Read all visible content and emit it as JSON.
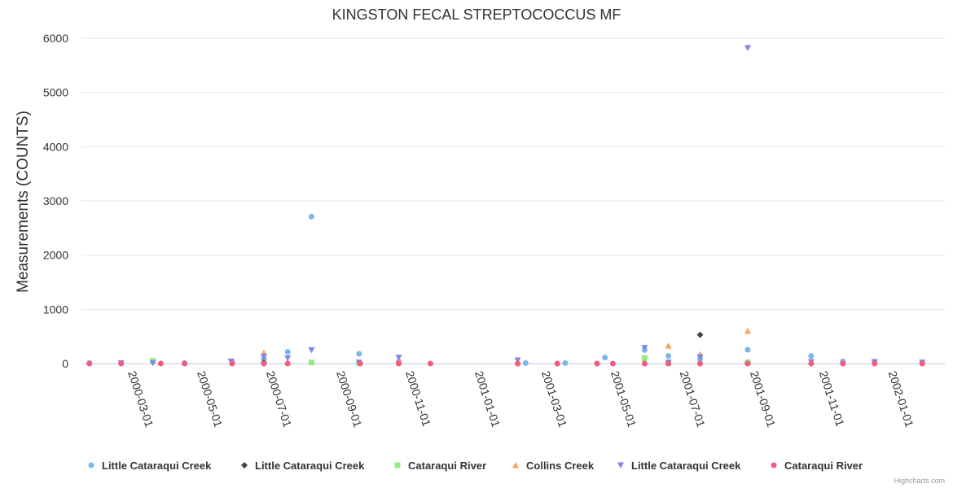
{
  "chart_data": {
    "type": "scatter",
    "title": "KINGSTON FECAL STREPTOCOCCUS MF",
    "xlabel": "",
    "ylabel": "Measurements (COUNTS)",
    "xlim": [
      "2000-01-20",
      "2002-02-20"
    ],
    "ylim": [
      0,
      6000
    ],
    "yticks": [
      0,
      1000,
      2000,
      3000,
      4000,
      5000,
      6000
    ],
    "xtick_labels": [
      "2000-03-01",
      "2000-05-01",
      "2000-07-01",
      "2000-09-01",
      "2000-11-01",
      "2001-01-01",
      "2001-03-01",
      "2001-05-01",
      "2001-07-01",
      "2001-09-01",
      "2001-11-01",
      "2002-01-01"
    ],
    "grid": true,
    "legend_position": "bottom",
    "series": [
      {
        "name": "Little Cataraqui Creek",
        "marker": "circle",
        "color": "#7cb5ec",
        "points": [
          [
            "2000-01-27",
            10
          ],
          [
            "2000-02-24",
            10
          ],
          [
            "2000-03-23",
            30
          ],
          [
            "2000-04-20",
            10
          ],
          [
            "2000-06-01",
            30
          ],
          [
            "2000-06-29",
            90
          ],
          [
            "2000-07-20",
            215
          ],
          [
            "2000-08-10",
            2710
          ],
          [
            "2000-09-21",
            180
          ],
          [
            "2000-10-26",
            40
          ],
          [
            "2001-02-15",
            10
          ],
          [
            "2001-03-22",
            10
          ],
          [
            "2001-04-26",
            110
          ],
          [
            "2001-05-31",
            250
          ],
          [
            "2001-06-21",
            140
          ],
          [
            "2001-07-19",
            80
          ],
          [
            "2001-08-30",
            255
          ],
          [
            "2001-10-25",
            140
          ],
          [
            "2001-11-22",
            40
          ],
          [
            "2001-12-20",
            30
          ],
          [
            "2002-01-31",
            10
          ]
        ]
      },
      {
        "name": "Little Cataraqui Creek",
        "marker": "diamond",
        "color": "#434348",
        "points": [
          [
            "2000-06-29",
            20
          ],
          [
            "2000-09-21",
            20
          ],
          [
            "2001-07-19",
            530
          ],
          [
            "2001-08-30",
            20
          ]
        ]
      },
      {
        "name": "Cataraqui River",
        "marker": "square",
        "color": "#90ed7d",
        "points": [
          [
            "2000-03-23",
            50
          ],
          [
            "2000-08-10",
            20
          ],
          [
            "2000-09-21",
            10
          ],
          [
            "2001-05-31",
            100
          ],
          [
            "2001-06-21",
            10
          ],
          [
            "2001-08-30",
            20
          ]
        ]
      },
      {
        "name": "Collins Creek",
        "marker": "triangle",
        "color": "#f7a35c",
        "points": [
          [
            "2000-06-29",
            200
          ],
          [
            "2000-07-20",
            30
          ],
          [
            "2000-10-26",
            60
          ],
          [
            "2001-06-21",
            330
          ],
          [
            "2001-07-19",
            170
          ],
          [
            "2001-08-30",
            600
          ]
        ]
      },
      {
        "name": "Little Cataraqui Creek",
        "marker": "triangle-down",
        "color": "#8085e9",
        "points": [
          [
            "2000-02-24",
            10
          ],
          [
            "2000-03-23",
            10
          ],
          [
            "2000-05-31",
            40
          ],
          [
            "2000-06-29",
            130
          ],
          [
            "2000-07-20",
            100
          ],
          [
            "2000-08-10",
            250
          ],
          [
            "2000-09-21",
            20
          ],
          [
            "2000-10-26",
            110
          ],
          [
            "2001-02-08",
            60
          ],
          [
            "2001-05-31",
            290
          ],
          [
            "2001-06-21",
            20
          ],
          [
            "2001-07-19",
            120
          ],
          [
            "2001-08-30",
            5820
          ],
          [
            "2001-10-25",
            30
          ],
          [
            "2001-12-20",
            30
          ],
          [
            "2002-01-31",
            20
          ]
        ]
      },
      {
        "name": "Cataraqui River",
        "marker": "circle",
        "color": "#f15c80",
        "points": [
          [
            "2000-01-27",
            0
          ],
          [
            "2000-02-24",
            0
          ],
          [
            "2000-03-30",
            0
          ],
          [
            "2000-04-20",
            0
          ],
          [
            "2000-06-01",
            0
          ],
          [
            "2000-06-29",
            0
          ],
          [
            "2000-07-20",
            0
          ],
          [
            "2000-09-22",
            0
          ],
          [
            "2000-10-26",
            0
          ],
          [
            "2000-11-23",
            0
          ],
          [
            "2001-02-08",
            0
          ],
          [
            "2001-03-15",
            0
          ],
          [
            "2001-04-19",
            0
          ],
          [
            "2001-05-03",
            0
          ],
          [
            "2001-05-31",
            0
          ],
          [
            "2001-06-21",
            0
          ],
          [
            "2001-07-19",
            0
          ],
          [
            "2001-08-30",
            0
          ],
          [
            "2001-10-25",
            0
          ],
          [
            "2001-11-22",
            0
          ],
          [
            "2001-12-20",
            0
          ],
          [
            "2002-01-31",
            0
          ]
        ]
      }
    ]
  },
  "credits": "Highcharts.com"
}
